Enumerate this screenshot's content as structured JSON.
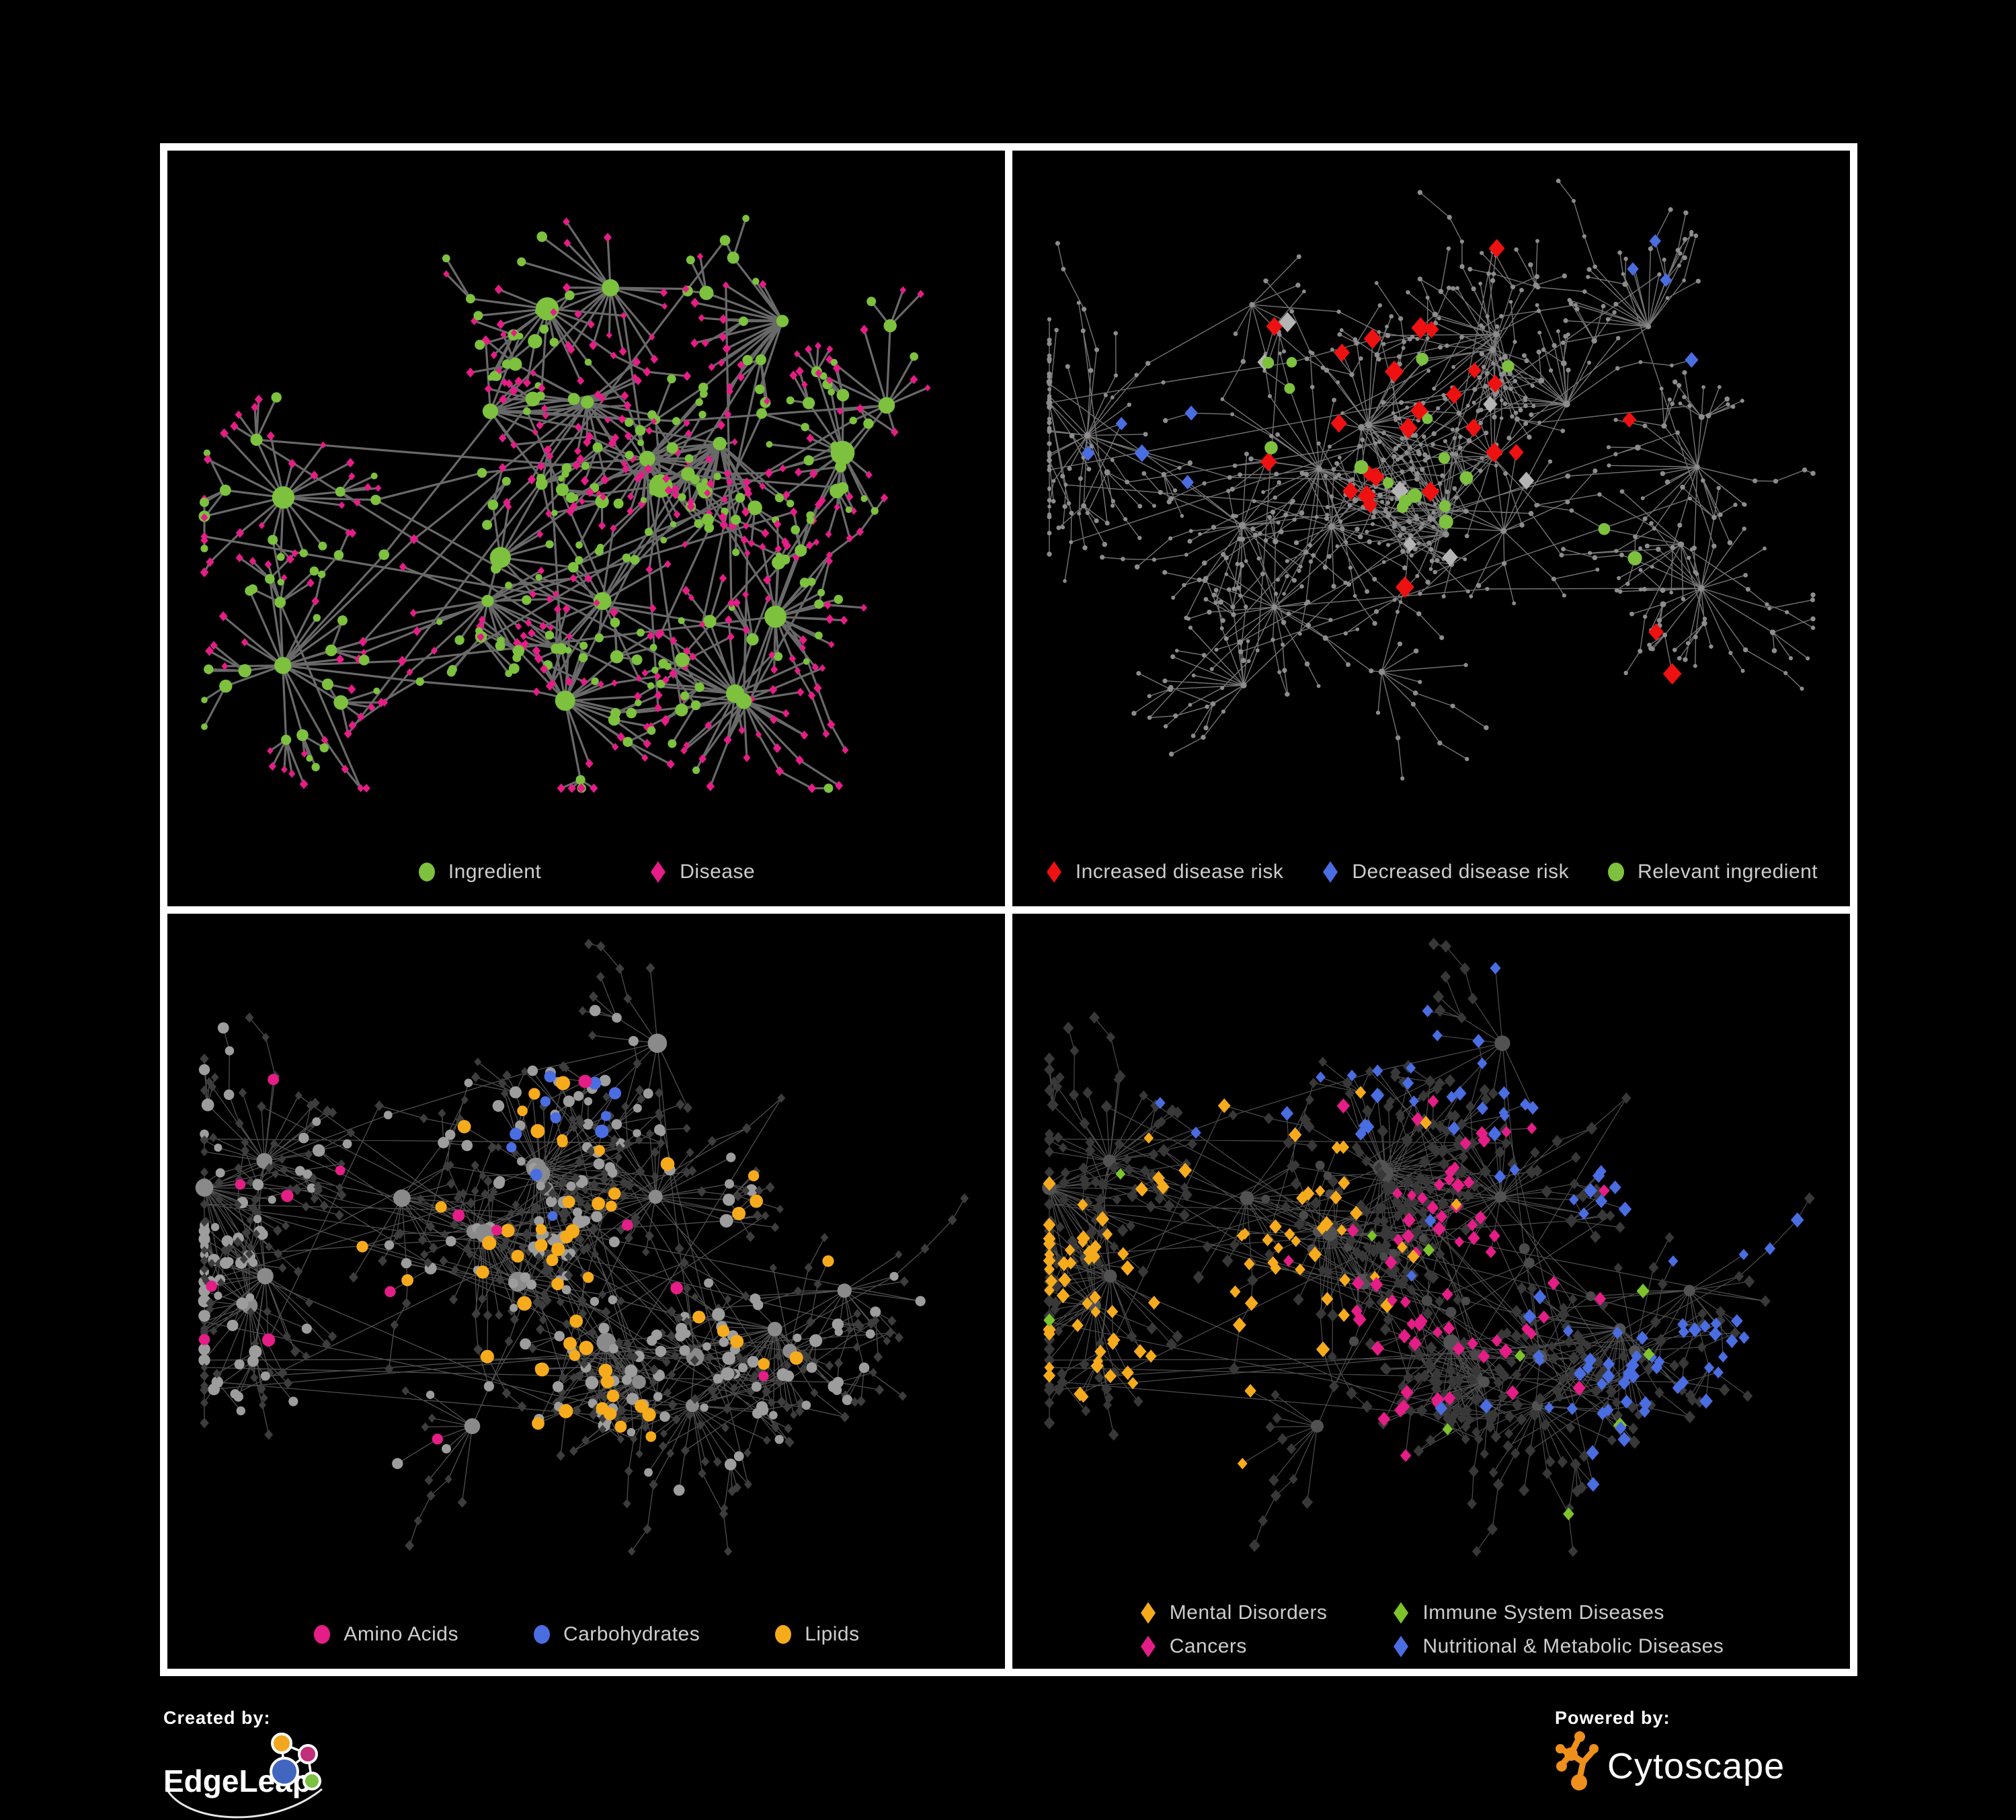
{
  "page": {
    "background": "#000000",
    "frame_color": "#ffffff",
    "legend_text_color": "#cdcdcd"
  },
  "panels": [
    {
      "name": "ingredient-disease",
      "legend_columns": 1,
      "legend_gap": 160,
      "legend": [
        {
          "label": "Ingredient",
          "shape": "circle",
          "color": "#7dc13e"
        },
        {
          "label": "Disease",
          "shape": "diamond",
          "color": "#e51d86"
        }
      ],
      "net": {
        "seed": 9,
        "clusters": 19,
        "leaf_min": 7,
        "leaf_max": 24,
        "leaf_radius": 92,
        "sub_prob": 0.18,
        "twig_prob": 0.12,
        "extra_links": 26,
        "edge": {
          "color": "#6f6f6f",
          "width": 3.2,
          "opacity": 0.95
        },
        "roles": {
          "hub": [
            {
              "p": 0.8,
              "shape": "circle",
              "color": "#7dc13e",
              "r": [
                12,
                18
              ]
            },
            {
              "p": 0.2,
              "shape": "circle",
              "color": "#7dc13e",
              "r": [
                9,
                12
              ]
            }
          ],
          "sub": [
            {
              "p": 1,
              "shape": "circle",
              "color": "#7dc13e",
              "r": [
                7,
                11
              ]
            }
          ],
          "chain": [
            {
              "p": 0.55,
              "shape": "circle",
              "color": "#7dc13e",
              "r": [
                5,
                8
              ]
            },
            {
              "p": 0.45,
              "shape": "diamond",
              "color": "#e51d86",
              "r": [
                5,
                7
              ]
            }
          ],
          "leaf": [
            {
              "p": 0.72,
              "shape": "diamond",
              "color": "#e51d86",
              "r": [
                4.5,
                6.5
              ]
            },
            {
              "p": 0.28,
              "shape": "circle",
              "color": "#7dc13e",
              "r": [
                4.5,
                8
              ]
            }
          ]
        },
        "highlights": []
      }
    },
    {
      "name": "disease-risk",
      "legend_columns": 1,
      "legend_gap": 56,
      "legend": [
        {
          "label": "Increased disease risk",
          "shape": "diamond",
          "color": "#ee1111"
        },
        {
          "label": "Decreased disease risk",
          "shape": "diamond",
          "color": "#4a6de2"
        },
        {
          "label": "Relevant ingredient",
          "shape": "circle",
          "color": "#7dc13e"
        }
      ],
      "net": {
        "seed": 23,
        "clusters": 22,
        "leaf_min": 6,
        "leaf_max": 22,
        "leaf_radius": 88,
        "sub_prob": 0.2,
        "twig_prob": 0.4,
        "extra_links": 22,
        "edge": {
          "color": "#8a8a8a",
          "width": 1.4,
          "opacity": 0.85
        },
        "roles": {
          "hub": [
            {
              "p": 1,
              "shape": "circle",
              "color": "#8c8c8c",
              "r": [
                4,
                5.5
              ]
            }
          ],
          "sub": [
            {
              "p": 1,
              "shape": "circle",
              "color": "#8c8c8c",
              "r": [
                3.5,
                4.5
              ]
            }
          ],
          "chain": [
            {
              "p": 1,
              "shape": "circle",
              "color": "#8c8c8c",
              "r": [
                3,
                4
              ]
            }
          ],
          "leaf": [
            {
              "p": 1,
              "shape": "circle",
              "color": "#8c8c8c",
              "r": [
                2.8,
                3.8
              ]
            }
          ]
        },
        "highlights": [
          {
            "shape": "diamond",
            "color": "#ee1111",
            "r": 12,
            "count": 27,
            "anchors": [
              [
                0.33,
                0.3
              ],
              [
                0.44,
                0.37
              ],
              [
                0.72,
                0.77
              ]
            ],
            "spread": 0.12
          },
          {
            "shape": "diamond",
            "color": "#b4b4b4",
            "r": 11,
            "count": 7,
            "anchors": [
              [
                0.3,
                0.33
              ],
              [
                0.5,
                0.42
              ]
            ],
            "spread": 0.08
          },
          {
            "shape": "diamond",
            "color": "#4a6de2",
            "r": 10,
            "count": 9,
            "anchors": [
              [
                0.17,
                0.33
              ],
              [
                0.82,
                0.17
              ]
            ],
            "spread": 0.06
          },
          {
            "shape": "circle",
            "color": "#7dc13e",
            "r": 9,
            "count": 18,
            "anchors": [
              [
                0.27,
                0.27
              ],
              [
                0.5,
                0.43
              ]
            ],
            "spread": 0.12
          }
        ]
      }
    },
    {
      "name": "nutrient-classes",
      "legend_columns": 1,
      "legend_gap": 110,
      "legend": [
        {
          "label": "Amino Acids",
          "shape": "circle",
          "color": "#e51d86"
        },
        {
          "label": "Carbohydrates",
          "shape": "circle",
          "color": "#4a6de2"
        },
        {
          "label": "Lipids",
          "shape": "circle",
          "color": "#f6ab1d"
        }
      ],
      "net": {
        "seed": 57,
        "clusters": 21,
        "leaf_min": 8,
        "leaf_max": 27,
        "leaf_radius": 92,
        "sub_prob": 0.2,
        "twig_prob": 0.25,
        "extra_links": 64,
        "edge": {
          "color": "#b0b0b0",
          "width": 1.3,
          "opacity": 0.45
        },
        "roles": {
          "hub": [
            {
              "p": 1,
              "shape": "circle",
              "color": "#8a8a8a",
              "r": [
                10,
                16
              ]
            }
          ],
          "sub": [
            {
              "p": 1,
              "shape": "circle",
              "color": "#9d9d9d",
              "r": [
                7,
                10
              ]
            }
          ],
          "chain": [
            {
              "p": 0.5,
              "shape": "circle",
              "color": "#9d9d9d",
              "r": [
                6,
                9
              ]
            },
            {
              "p": 0.5,
              "shape": "diamond",
              "color": "#3d3d3d",
              "r": [
                5.5,
                7
              ]
            }
          ],
          "leaf": [
            {
              "p": 0.78,
              "shape": "diamond",
              "color": "#3d3d3d",
              "r": [
                5.5,
                7
              ]
            },
            {
              "p": 0.22,
              "shape": "circle",
              "color": "#9d9d9d",
              "r": [
                6,
                9
              ]
            }
          ]
        },
        "highlights": [
          {
            "shape": "circle",
            "color": "#f6ab1d",
            "r": 9,
            "count": 55,
            "anchors": [
              [
                0.44,
                0.3
              ],
              [
                0.4,
                0.47
              ],
              [
                0.5,
                0.62
              ],
              [
                0.63,
                0.5
              ]
            ],
            "spread": 0.09
          },
          {
            "shape": "circle",
            "color": "#4a6de2",
            "r": 8.5,
            "count": 11,
            "anchors": [
              [
                0.44,
                0.26
              ],
              [
                0.3,
                0.18
              ]
            ],
            "spread": 0.06
          },
          {
            "shape": "circle",
            "color": "#e51d86",
            "r": 8.5,
            "count": 15,
            "anchors": [],
            "spread": 0.2
          }
        ]
      }
    },
    {
      "name": "disease-classes",
      "legend_columns": 2,
      "legend_gap": 96,
      "legend": [
        {
          "label": "Mental Disorders",
          "shape": "diamond",
          "color": "#f6ab1d"
        },
        {
          "label": "Immune System Diseases",
          "shape": "diamond",
          "color": "#7dc32c"
        },
        {
          "label": "Cancers",
          "shape": "diamond",
          "color": "#e51d86"
        },
        {
          "label": "Nutritional & Metabolic Diseases",
          "shape": "diamond",
          "color": "#4a6de2"
        }
      ],
      "net": {
        "seed": 57,
        "clusters": 21,
        "leaf_min": 8,
        "leaf_max": 27,
        "leaf_radius": 92,
        "sub_prob": 0.2,
        "twig_prob": 0.25,
        "extra_links": 64,
        "edge": {
          "color": "#9a9a9a",
          "width": 1.2,
          "opacity": 0.5
        },
        "roles": {
          "hub": [
            {
              "p": 1,
              "shape": "circle",
              "color": "#525252",
              "r": [
                8,
                13
              ]
            }
          ],
          "sub": [
            {
              "p": 1,
              "shape": "diamond",
              "color": "#383838",
              "r": [
                7,
                9
              ]
            }
          ],
          "chain": [
            {
              "p": 0.5,
              "shape": "diamond",
              "color": "#383838",
              "r": [
                6.5,
                8.5
              ]
            },
            {
              "p": 0.5,
              "shape": "circle",
              "color": "#4a4a4a",
              "r": [
                6,
                8
              ]
            }
          ],
          "leaf": [
            {
              "p": 1,
              "shape": "diamond",
              "color": "#383838",
              "r": [
                6.5,
                8.5
              ]
            }
          ]
        },
        "highlights": [
          {
            "shape": "diamond",
            "color": "#f6ab1d",
            "r": 8.5,
            "count": 95,
            "anchors": [
              [
                0.18,
                0.52
              ],
              [
                0.27,
                0.42
              ]
            ],
            "spread": 0.09
          },
          {
            "shape": "diamond",
            "color": "#e51d86",
            "r": 8.5,
            "count": 70,
            "anchors": [
              [
                0.5,
                0.56
              ],
              [
                0.56,
                0.42
              ],
              [
                0.88,
                0.22
              ]
            ],
            "spread": 0.08
          },
          {
            "shape": "diamond",
            "color": "#4a6de2",
            "r": 8.5,
            "count": 95,
            "anchors": [
              [
                0.73,
                0.38
              ],
              [
                0.76,
                0.62
              ],
              [
                0.36,
                0.14
              ],
              [
                0.62,
                0.16
              ],
              [
                0.85,
                0.45
              ]
            ],
            "spread": 0.1
          },
          {
            "shape": "diamond",
            "color": "#7dc32c",
            "r": 8.5,
            "count": 10,
            "anchors": [],
            "spread": 0.2
          }
        ]
      }
    }
  ],
  "footer": {
    "created_by_label": "Created by:",
    "edgeleap_text": "EdgeLeap",
    "powered_by_label": "Powered by:",
    "cytoscape_text": "Cytoscape",
    "edgeleap_colors": {
      "orange": "#f2a71f",
      "magenta": "#c22f79",
      "blue": "#4166c0",
      "green": "#7cc142"
    },
    "cytoscape_orange": "#ef8f1c"
  }
}
